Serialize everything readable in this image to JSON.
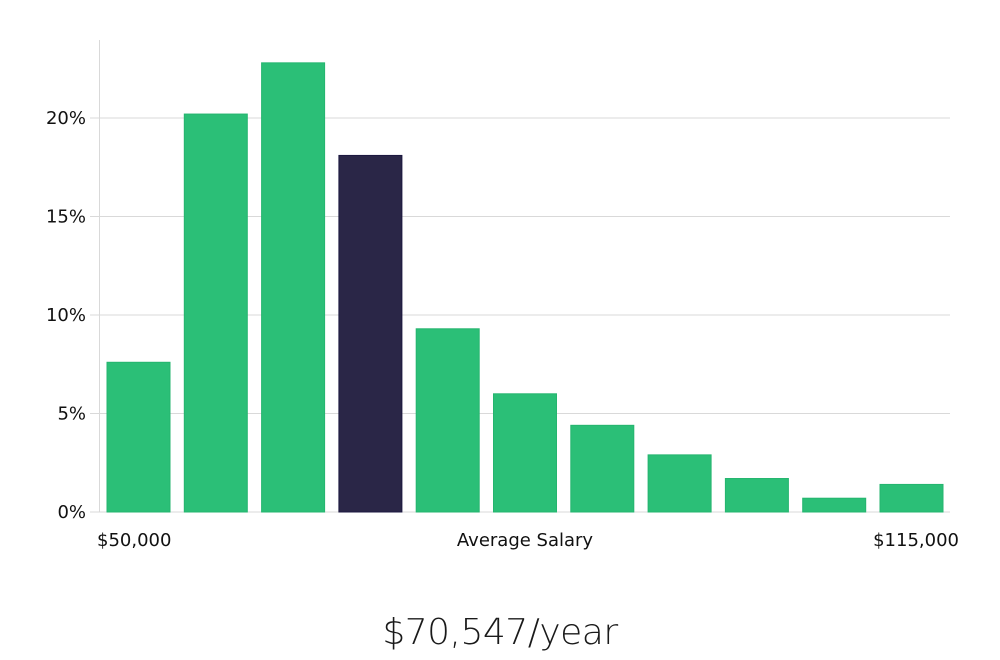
{
  "chart_data": {
    "type": "bar",
    "title": "",
    "xlabel": "Average Salary",
    "ylabel": "",
    "x_range_labels": [
      "$50,000",
      "$115,000"
    ],
    "categories": [
      "1",
      "2",
      "3",
      "4",
      "5",
      "6",
      "7",
      "8",
      "9",
      "10",
      "11"
    ],
    "values": [
      7.6,
      20.2,
      22.8,
      18.1,
      9.3,
      6.0,
      4.4,
      2.9,
      1.7,
      0.7,
      1.4
    ],
    "highlight_index": 3,
    "yticks": [
      0,
      5,
      10,
      15,
      20
    ],
    "ytick_labels": [
      "0%",
      "5%",
      "10%",
      "15%",
      "20%"
    ],
    "ylim": [
      0,
      24
    ],
    "grid": true,
    "colors": {
      "bar": "#2bbf77",
      "highlight": "#2a2647",
      "grid": "#d9d9d9"
    }
  },
  "summary": {
    "average_salary": "$70,547/year"
  }
}
